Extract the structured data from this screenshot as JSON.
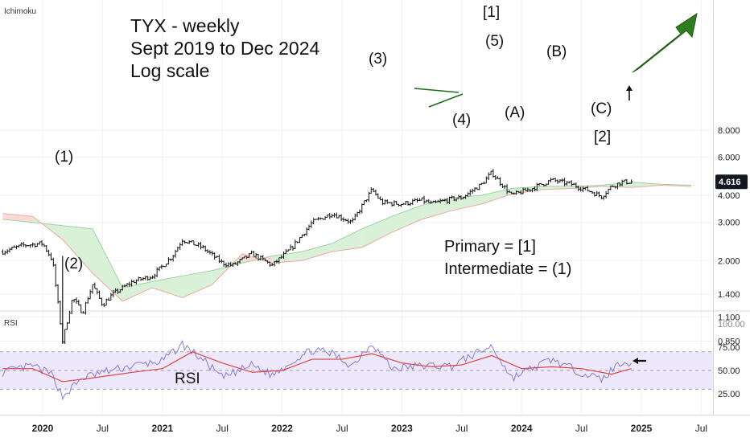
{
  "chart_data": {
    "type": "line",
    "title_lines": [
      "TYX - weekly",
      "Sept 2019 to Dec 2024",
      "Log scale"
    ],
    "indicator_labels": {
      "price_pane": "Ichimoku",
      "rsi_pane": "RSI"
    },
    "rsi_inline_label": "RSI",
    "y_scale": "log",
    "price_ticks": [
      "8.000",
      "6.000",
      "4.000",
      "3.000",
      "2.000",
      "1.400",
      "1.100",
      "0.850"
    ],
    "price_tick_values": [
      8.0,
      6.0,
      4.0,
      3.0,
      2.0,
      1.4,
      1.1,
      0.85
    ],
    "last_price_label": "4.616",
    "last_price": 4.616,
    "rsi_ticks": [
      "100.00",
      "75.00",
      "50.00",
      "25.00"
    ],
    "rsi_tick_values": [
      100,
      75,
      50,
      25
    ],
    "rsi_band": [
      30,
      70
    ],
    "x_tick_labels": [
      "2020",
      "Jul",
      "2021",
      "Jul",
      "2022",
      "Jul",
      "2023",
      "Jul",
      "2024",
      "Jul",
      "2025",
      "Jul"
    ],
    "x_tick_dates": [
      "2020-01",
      "2020-07",
      "2021-01",
      "2021-07",
      "2022-01",
      "2022-07",
      "2023-01",
      "2023-07",
      "2024-01",
      "2024-07",
      "2025-01",
      "2025-07"
    ],
    "series": [
      {
        "kind": "price",
        "points": [
          [
            "2019-09",
            2.2
          ],
          [
            "2019-11",
            2.35
          ],
          [
            "2020-01",
            2.4
          ],
          [
            "2020-02",
            2.0
          ],
          [
            "2020-03",
            0.85
          ],
          [
            "2020-04",
            1.35
          ],
          [
            "2020-05",
            1.15
          ],
          [
            "2020-06",
            1.55
          ],
          [
            "2020-07",
            1.25
          ],
          [
            "2020-08",
            1.4
          ],
          [
            "2020-10",
            1.6
          ],
          [
            "2020-12",
            1.7
          ],
          [
            "2021-02",
            2.1
          ],
          [
            "2021-03",
            2.5
          ],
          [
            "2021-05",
            2.3
          ],
          [
            "2021-07",
            1.95
          ],
          [
            "2021-08",
            1.9
          ],
          [
            "2021-10",
            2.15
          ],
          [
            "2021-12",
            1.9
          ],
          [
            "2022-02",
            2.3
          ],
          [
            "2022-04",
            3.0
          ],
          [
            "2022-06",
            3.3
          ],
          [
            "2022-08",
            3.0
          ],
          [
            "2022-10",
            4.25
          ],
          [
            "2022-11",
            3.7
          ],
          [
            "2023-01",
            3.65
          ],
          [
            "2023-03",
            3.8
          ],
          [
            "2023-04",
            3.65
          ],
          [
            "2023-06",
            3.85
          ],
          [
            "2023-07",
            3.9
          ],
          [
            "2023-09",
            4.5
          ],
          [
            "2023-10",
            5.1
          ],
          [
            "2023-11",
            4.5
          ],
          [
            "2023-12",
            4.0
          ],
          [
            "2024-02",
            4.3
          ],
          [
            "2024-04",
            4.7
          ],
          [
            "2024-06",
            4.5
          ],
          [
            "2024-08",
            4.15
          ],
          [
            "2024-09",
            3.95
          ],
          [
            "2024-10",
            4.4
          ],
          [
            "2024-11",
            4.6
          ],
          [
            "2024-12",
            4.616
          ]
        ]
      },
      {
        "kind": "ichimoku-cloud",
        "points": [
          [
            "2019-09",
            3.1,
            3.3
          ],
          [
            "2019-12",
            3.0,
            3.2
          ],
          [
            "2020-03",
            2.9,
            2.5
          ],
          [
            "2020-06",
            2.8,
            1.75
          ],
          [
            "2020-09",
            1.5,
            1.3
          ],
          [
            "2020-12",
            1.6,
            1.5
          ],
          [
            "2021-03",
            1.7,
            1.35
          ],
          [
            "2021-06",
            1.8,
            1.55
          ],
          [
            "2021-09",
            1.95,
            2.15
          ],
          [
            "2021-12",
            2.1,
            1.95
          ],
          [
            "2022-03",
            2.2,
            2.0
          ],
          [
            "2022-06",
            2.4,
            2.2
          ],
          [
            "2022-09",
            2.8,
            2.3
          ],
          [
            "2022-12",
            3.2,
            2.7
          ],
          [
            "2023-03",
            3.6,
            3.1
          ],
          [
            "2023-06",
            3.9,
            3.4
          ],
          [
            "2023-09",
            4.0,
            3.65
          ],
          [
            "2023-12",
            4.3,
            4.05
          ],
          [
            "2024-03",
            4.4,
            4.25
          ],
          [
            "2024-06",
            4.4,
            4.3
          ],
          [
            "2024-09",
            4.45,
            4.4
          ],
          [
            "2024-12",
            4.6,
            4.35
          ],
          [
            "2025-03",
            4.5,
            4.45
          ],
          [
            "2025-06",
            4.45,
            4.4
          ]
        ]
      },
      {
        "kind": "rsi",
        "points": [
          [
            "2019-09",
            48
          ],
          [
            "2019-12",
            55
          ],
          [
            "2020-02",
            45
          ],
          [
            "2020-03",
            22
          ],
          [
            "2020-05",
            42
          ],
          [
            "2020-07",
            48
          ],
          [
            "2020-10",
            55
          ],
          [
            "2021-01",
            60
          ],
          [
            "2021-03",
            78
          ],
          [
            "2021-05",
            62
          ],
          [
            "2021-07",
            42
          ],
          [
            "2021-10",
            56
          ],
          [
            "2021-12",
            45
          ],
          [
            "2022-02",
            60
          ],
          [
            "2022-04",
            72
          ],
          [
            "2022-06",
            68
          ],
          [
            "2022-08",
            55
          ],
          [
            "2022-10",
            80
          ],
          [
            "2022-12",
            52
          ],
          [
            "2023-03",
            55
          ],
          [
            "2023-06",
            55
          ],
          [
            "2023-08",
            66
          ],
          [
            "2023-10",
            76
          ],
          [
            "2023-12",
            42
          ],
          [
            "2024-02",
            52
          ],
          [
            "2024-04",
            62
          ],
          [
            "2024-06",
            52
          ],
          [
            "2024-09",
            40
          ],
          [
            "2024-11",
            60
          ],
          [
            "2024-12",
            58
          ]
        ]
      },
      {
        "kind": "rsi-average",
        "points": [
          [
            "2019-09",
            52
          ],
          [
            "2019-12",
            52
          ],
          [
            "2020-03",
            38
          ],
          [
            "2020-06",
            42
          ],
          [
            "2020-10",
            48
          ],
          [
            "2021-01",
            52
          ],
          [
            "2021-04",
            70
          ],
          [
            "2021-07",
            58
          ],
          [
            "2021-10",
            48
          ],
          [
            "2022-01",
            50
          ],
          [
            "2022-04",
            62
          ],
          [
            "2022-07",
            62
          ],
          [
            "2022-10",
            68
          ],
          [
            "2023-01",
            58
          ],
          [
            "2023-04",
            54
          ],
          [
            "2023-07",
            56
          ],
          [
            "2023-10",
            66
          ],
          [
            "2024-01",
            52
          ],
          [
            "2024-04",
            54
          ],
          [
            "2024-07",
            52
          ],
          [
            "2024-10",
            46
          ],
          [
            "2024-12",
            52
          ]
        ]
      }
    ],
    "wave_labels": [
      {
        "text": "(1)",
        "date": "2020-01",
        "price": 2.55
      },
      {
        "text": "(2)",
        "date": "2020-04",
        "price": 0.95
      },
      {
        "text": "(3)",
        "date": "2022-10",
        "price": 5.0
      },
      {
        "text": "(4)",
        "date": "2023-07",
        "price": 3.3
      },
      {
        "text": "[1]",
        "date": "2023-11",
        "price": 7.9
      },
      {
        "text": "(5)",
        "date": "2023-11",
        "price": 6.0
      },
      {
        "text": "(A)",
        "date": "2023-12",
        "price": 3.6
      },
      {
        "text": "(B)",
        "date": "2024-04",
        "price": 5.6
      },
      {
        "text": "(C)",
        "date": "2024-09",
        "price": 3.6
      },
      {
        "text": "[2]",
        "date": "2024-09",
        "price": 2.95
      }
    ],
    "legend_lines": [
      "Primary = [1]",
      "Intermediate = (1)"
    ]
  }
}
